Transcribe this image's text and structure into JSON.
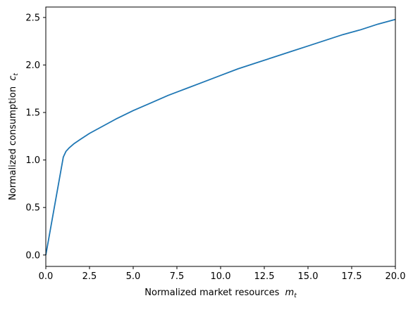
{
  "chart_data": {
    "type": "line",
    "title": "",
    "xlabel": "Normalized market resources",
    "xlabel_sub": "m",
    "xlabel_subscript": "t",
    "ylabel": "Normalized consumption",
    "ylabel_sub": "c",
    "ylabel_subscript": "t",
    "xlim": [
      0,
      20
    ],
    "ylim": [
      -0.12,
      2.61
    ],
    "xticks": [
      0.0,
      2.5,
      5.0,
      7.5,
      10.0,
      12.5,
      15.0,
      17.5,
      20.0
    ],
    "xtick_labels": [
      "0.0",
      "2.5",
      "5.0",
      "7.5",
      "10.0",
      "12.5",
      "15.0",
      "17.5",
      "20.0"
    ],
    "yticks": [
      0.0,
      0.5,
      1.0,
      1.5,
      2.0,
      2.5
    ],
    "ytick_labels": [
      "0.0",
      "0.5",
      "1.0",
      "1.5",
      "2.0",
      "2.5"
    ],
    "grid": false,
    "legend": "none",
    "color": "#1f77b4",
    "series": [
      {
        "x": [
          0.0,
          1.0,
          1.15,
          1.35,
          1.6,
          2.0,
          2.5,
          3.0,
          4.0,
          5.0,
          6.0,
          7.0,
          8.0,
          9.0,
          10.0,
          11.0,
          12.0,
          13.0,
          14.0,
          15.0,
          16.0,
          17.0,
          18.0,
          19.0,
          20.0
        ],
        "y": [
          0.0,
          1.03,
          1.09,
          1.13,
          1.17,
          1.22,
          1.28,
          1.33,
          1.43,
          1.52,
          1.6,
          1.68,
          1.75,
          1.82,
          1.89,
          1.96,
          2.02,
          2.08,
          2.14,
          2.2,
          2.26,
          2.32,
          2.37,
          2.43,
          2.48
        ]
      }
    ]
  }
}
